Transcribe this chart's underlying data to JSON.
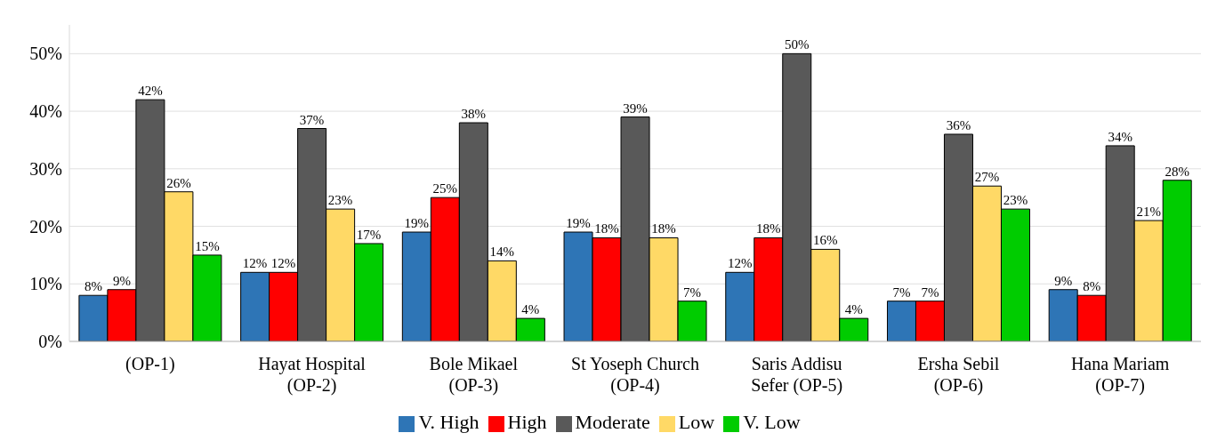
{
  "chart_data": {
    "type": "bar",
    "categories": [
      "(OP-1)",
      "Hayat Hospital (OP-2)",
      "Bole Mikael (OP-3)",
      "St Yoseph Church (OP-4)",
      "Saris Addisu Sefer (OP-5)",
      "Ersha Sebil (OP-6)",
      "Hana Mariam (OP-7)"
    ],
    "series": [
      {
        "name": "V. High",
        "color": "#2e75b6",
        "values": [
          8,
          12,
          19,
          19,
          12,
          7,
          9
        ],
        "value_labels": [
          "8%",
          "12%",
          "19%",
          "19%",
          "12%",
          "7%",
          "9%"
        ]
      },
      {
        "name": "High",
        "color": "#ff0000",
        "values": [
          9,
          12,
          25,
          18,
          18,
          7,
          8
        ],
        "value_labels": [
          "9%",
          "12%",
          "25%",
          "18%",
          "18%",
          "7%",
          "8%"
        ]
      },
      {
        "name": "Moderate",
        "color": "#595959",
        "values": [
          42,
          37,
          38,
          39,
          50,
          36,
          34
        ],
        "value_labels": [
          "42%",
          "37%",
          "38%",
          "39%",
          "50%",
          "36%",
          "34%"
        ]
      },
      {
        "name": "Low",
        "color": "#ffd966",
        "values": [
          26,
          23,
          14,
          18,
          16,
          27,
          21
        ],
        "value_labels": [
          "26%",
          "23%",
          "14%",
          "18%",
          "16%",
          "27%",
          "21%"
        ]
      },
      {
        "name": "V. Low",
        "color": "#00cc00",
        "values": [
          15,
          17,
          4,
          7,
          4,
          23,
          28
        ],
        "value_labels": [
          "15%",
          "17%",
          "4%",
          "7%",
          "4%",
          "23%",
          "28%"
        ]
      }
    ],
    "ylim": [
      0,
      55
    ],
    "yticks": [
      {
        "value": 0,
        "label": "0%"
      },
      {
        "value": 10,
        "label": "10%"
      },
      {
        "value": 20,
        "label": "20%"
      },
      {
        "value": 30,
        "label": "30%"
      },
      {
        "value": 40,
        "label": "40%"
      },
      {
        "value": 50,
        "label": "50%"
      }
    ],
    "grid": "y",
    "legend": "bottom"
  }
}
